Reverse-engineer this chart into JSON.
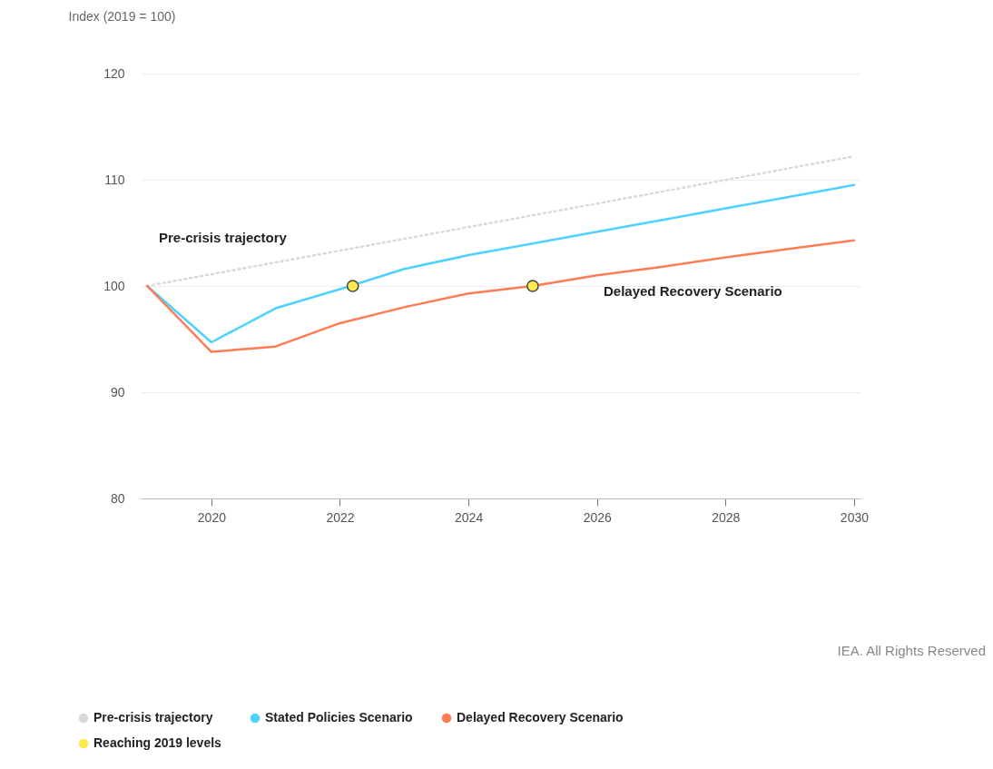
{
  "chart_data": {
    "type": "line",
    "ylabel": "Index (2019 = 100)",
    "xlim": [
      2018.9,
      2030.1
    ],
    "xticks": [
      2020,
      2022,
      2024,
      2026,
      2028,
      2030
    ],
    "ylim": [
      80,
      120
    ],
    "yticks": [
      80,
      90,
      100,
      110,
      120
    ],
    "grid": "y",
    "legend": "bottom left",
    "series": [
      {
        "name": "Pre-crisis trajectory",
        "color": "#d9d9d9",
        "line_style": "dotted",
        "x": [
          2019,
          2030
        ],
        "values": [
          100,
          112.2
        ]
      },
      {
        "name": "Stated Policies Scenario",
        "color": "#4dd2ff",
        "x": [
          2019,
          2020,
          2021,
          2022,
          2023,
          2024,
          2025,
          2026,
          2027,
          2028,
          2029,
          2030
        ],
        "values": [
          100,
          94.7,
          97.9,
          99.7,
          101.6,
          102.9,
          104.0,
          105.1,
          106.2,
          107.3,
          108.4,
          109.5
        ]
      },
      {
        "name": "Delayed Recovery Scenario",
        "color": "#ff7b54",
        "x": [
          2019,
          2020,
          2021,
          2022,
          2023,
          2024,
          2025,
          2026,
          2027,
          2028,
          2029,
          2030
        ],
        "values": [
          100,
          93.8,
          94.3,
          96.5,
          98.0,
          99.3,
          100.0,
          101.0,
          101.8,
          102.7,
          103.5,
          104.3
        ]
      },
      {
        "name": "Reaching 2019 levels",
        "type": "scatter",
        "marker": "circle",
        "color": "#ffe94d",
        "x": [
          2022.2,
          2025
        ],
        "values": [
          100,
          100
        ]
      }
    ],
    "annotations": [
      "Pre-crisis trajectory",
      "Delayed Recovery Scenario",
      "IEA. All Rights Reserved"
    ]
  }
}
